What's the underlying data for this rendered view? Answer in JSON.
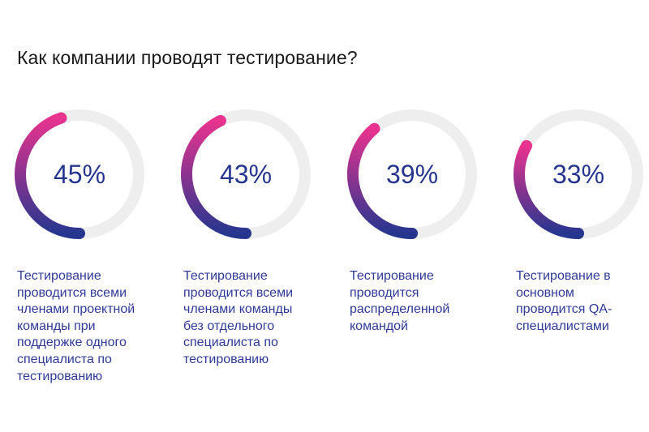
{
  "title": "Как компании проводят тестирование?",
  "colors": {
    "gradient_start": "#e8338f",
    "gradient_end": "#26368f",
    "track": "#eeeeee",
    "value_text": "#26368f",
    "caption_text": "#2f3a96"
  },
  "chart_data": {
    "type": "donut",
    "title": "Как компании проводят тестирование?",
    "items": [
      {
        "value": 45,
        "label": "45%",
        "caption": [
          "Тестирование",
          "проводится всеми",
          "членами проектной",
          "команды при",
          "поддержке одного",
          "специалиста по",
          "тестированию"
        ]
      },
      {
        "value": 43,
        "label": "43%",
        "caption": [
          "Тестирование",
          "проводится всеми",
          "членами команды",
          "без отдельного",
          "специалиста по",
          "тестированию"
        ]
      },
      {
        "value": 39,
        "label": "39%",
        "caption": [
          "Тестирование",
          "проводится",
          "распределенной",
          "командой"
        ]
      },
      {
        "value": 33,
        "label": "33%",
        "caption": [
          "Тестирование в",
          "основном",
          "проводится QA-",
          "специалистами"
        ]
      }
    ]
  }
}
